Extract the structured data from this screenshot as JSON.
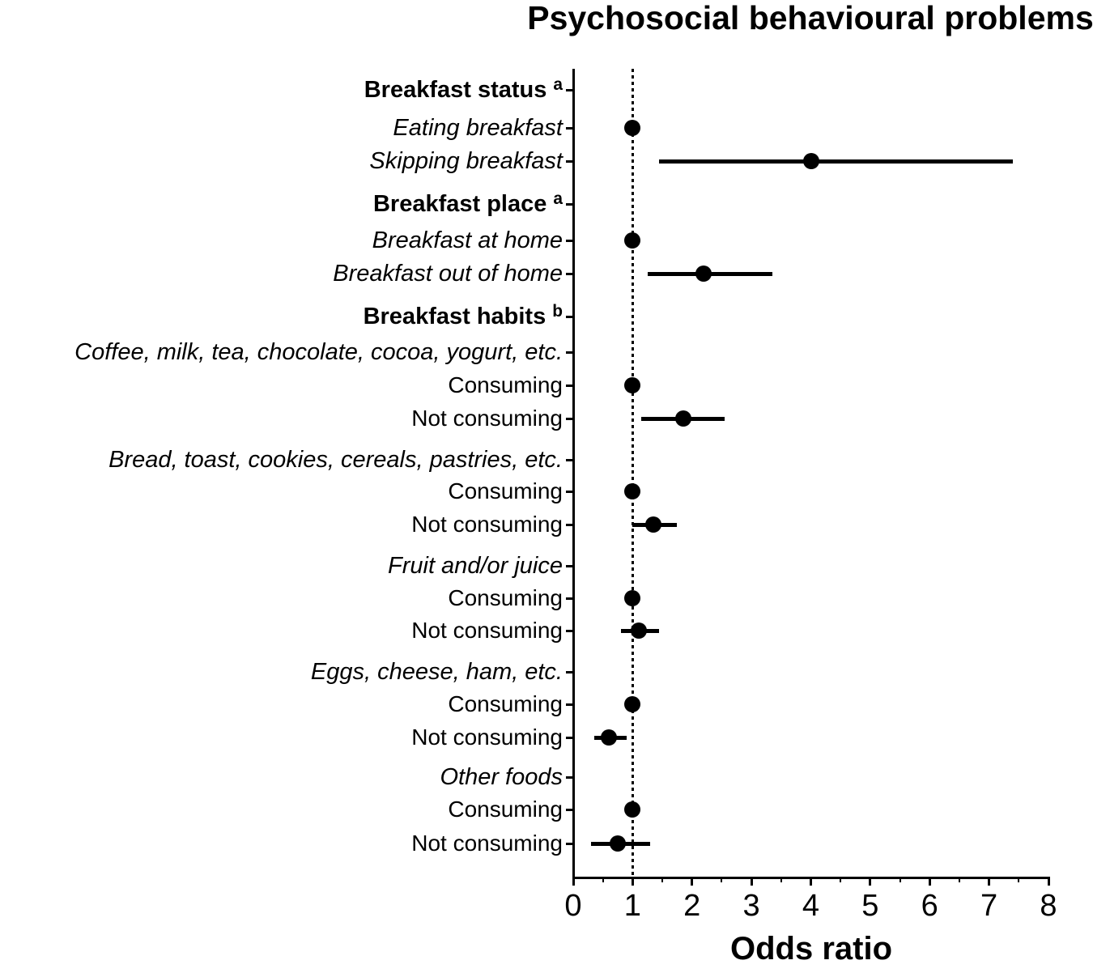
{
  "title": "Psychosocial behavioural problems",
  "x_axis_label": "Odds ratio",
  "chart_data": {
    "type": "scatter",
    "subtype": "forest-plot",
    "title": "Psychosocial behavioural problems",
    "xlabel": "Odds ratio",
    "xlim": [
      0,
      8
    ],
    "x_major_ticks": [
      0,
      1,
      2,
      3,
      4,
      5,
      6,
      7,
      8
    ],
    "x_minor_tick_step": 0.5,
    "reference_line_x": 1,
    "reference_line_style": "dotted",
    "grid": "off",
    "legend": "none",
    "marker_color": "#000000",
    "axis_color": "#000000",
    "rows": [
      {
        "label": "Breakfast status",
        "sup": "a",
        "style": "header"
      },
      {
        "label": "Eating breakfast",
        "style": "italic",
        "or": 1.0
      },
      {
        "label": "Skipping breakfast",
        "style": "italic",
        "or": 4.0,
        "ci_low": 1.45,
        "ci_high": 7.4
      },
      {
        "label": "Breakfast place",
        "sup": "a",
        "style": "header"
      },
      {
        "label": "Breakfast at home",
        "style": "italic",
        "or": 1.0
      },
      {
        "label": "Breakfast out of home",
        "style": "italic",
        "or": 2.2,
        "ci_low": 1.25,
        "ci_high": 3.35
      },
      {
        "label": "Breakfast habits",
        "sup": "b",
        "style": "header"
      },
      {
        "label": "Coffee, milk, tea, chocolate, cocoa, yogurt, etc.",
        "style": "italic"
      },
      {
        "label": "Consuming",
        "style": "plain",
        "or": 1.0
      },
      {
        "label": "Not consuming",
        "style": "plain",
        "or": 1.85,
        "ci_low": 1.15,
        "ci_high": 2.55
      },
      {
        "label": "Bread, toast, cookies, cereals, pastries, etc.",
        "style": "italic"
      },
      {
        "label": "Consuming",
        "style": "plain",
        "or": 1.0
      },
      {
        "label": "Not consuming",
        "style": "plain",
        "or": 1.35,
        "ci_low": 1.0,
        "ci_high": 1.75
      },
      {
        "label": "Fruit and/or juice",
        "style": "italic"
      },
      {
        "label": "Consuming",
        "style": "plain",
        "or": 1.0
      },
      {
        "label": "Not consuming",
        "style": "plain",
        "or": 1.1,
        "ci_low": 0.8,
        "ci_high": 1.45
      },
      {
        "label": "Eggs, cheese, ham, etc.",
        "style": "italic"
      },
      {
        "label": "Consuming",
        "style": "plain",
        "or": 1.0
      },
      {
        "label": "Not consuming",
        "style": "plain",
        "or": 0.6,
        "ci_low": 0.35,
        "ci_high": 0.9
      },
      {
        "label": "Other foods",
        "style": "italic"
      },
      {
        "label": "Consuming",
        "style": "plain",
        "or": 1.0
      },
      {
        "label": "Not consuming",
        "style": "plain",
        "or": 0.75,
        "ci_low": 0.3,
        "ci_high": 1.3
      }
    ]
  }
}
